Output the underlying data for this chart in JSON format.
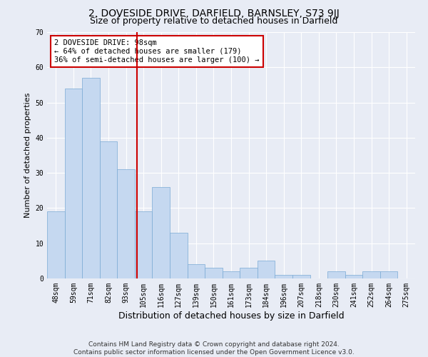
{
  "title": "2, DOVESIDE DRIVE, DARFIELD, BARNSLEY, S73 9JJ",
  "subtitle": "Size of property relative to detached houses in Darfield",
  "xlabel": "Distribution of detached houses by size in Darfield",
  "ylabel": "Number of detached properties",
  "categories": [
    "48sqm",
    "59sqm",
    "71sqm",
    "82sqm",
    "93sqm",
    "105sqm",
    "116sqm",
    "127sqm",
    "139sqm",
    "150sqm",
    "161sqm",
    "173sqm",
    "184sqm",
    "196sqm",
    "207sqm",
    "218sqm",
    "230sqm",
    "241sqm",
    "252sqm",
    "264sqm",
    "275sqm"
  ],
  "values": [
    19,
    54,
    57,
    39,
    31,
    19,
    26,
    13,
    4,
    3,
    2,
    3,
    5,
    1,
    1,
    0,
    2,
    1,
    2,
    2,
    0
  ],
  "bar_color": "#c5d8f0",
  "bar_edge_color": "#7aaad4",
  "background_color": "#e8ecf5",
  "red_line_x": 4.62,
  "annotation_text": "2 DOVESIDE DRIVE: 98sqm\n← 64% of detached houses are smaller (179)\n36% of semi-detached houses are larger (100) →",
  "annotation_box_color": "#ffffff",
  "annotation_box_edge": "#cc0000",
  "red_line_color": "#cc0000",
  "ylim": [
    0,
    70
  ],
  "yticks": [
    0,
    10,
    20,
    30,
    40,
    50,
    60,
    70
  ],
  "footer1": "Contains HM Land Registry data © Crown copyright and database right 2024.",
  "footer2": "Contains public sector information licensed under the Open Government Licence v3.0.",
  "title_fontsize": 10,
  "subtitle_fontsize": 9,
  "xlabel_fontsize": 9,
  "ylabel_fontsize": 8,
  "tick_fontsize": 7,
  "annotation_fontsize": 7.5,
  "footer_fontsize": 6.5
}
